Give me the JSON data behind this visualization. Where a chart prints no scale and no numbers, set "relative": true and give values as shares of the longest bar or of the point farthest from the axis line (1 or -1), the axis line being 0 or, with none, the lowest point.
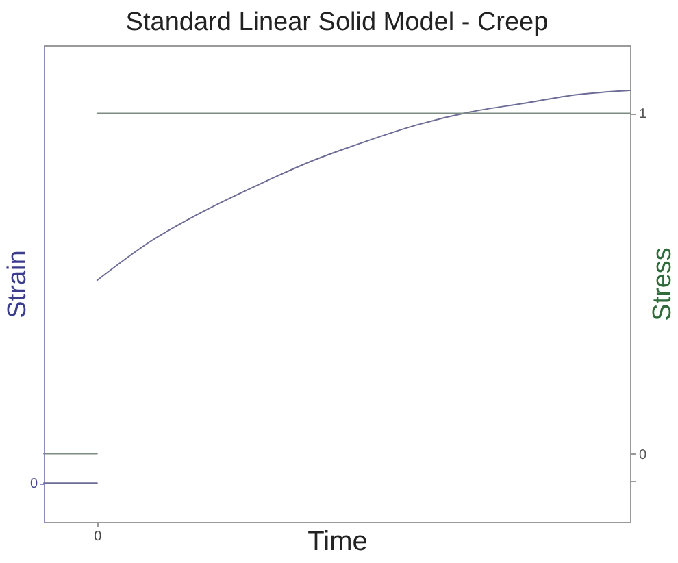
{
  "chart_data": {
    "type": "line",
    "title": "Standard Linear Solid Model - Creep",
    "xlabel": "Time",
    "ylabel": "Strain",
    "y2label": "Stress",
    "relative": true,
    "categories": [
      null,
      "0",
      null,
      null,
      null,
      null,
      null,
      null,
      null,
      null,
      null,
      null
    ],
    "y2lim": [
      -0.2,
      1.2
    ],
    "y2ticks": [
      0,
      1,
      {
        "value": -0.08,
        "label": null
      }
    ],
    "annotations": [
      "0"
    ],
    "series": [
      {
        "color": "#6c6c96",
        "values": [
          0.09,
          0.09,
          null,
          null,
          null,
          null,
          null,
          null,
          null,
          null,
          null,
          null
        ]
      },
      {
        "color": "#6c6c96",
        "values": [
          null,
          0.56,
          0.65,
          0.72,
          0.78,
          0.835,
          0.88,
          0.92,
          0.95,
          0.97,
          0.99,
          1
        ]
      },
      {
        "axis": "y2",
        "color": "#7d8c82",
        "values": [
          0,
          0,
          null,
          null,
          null,
          null,
          null,
          null,
          null,
          null,
          null,
          null
        ]
      },
      {
        "axis": "y2",
        "color": "#7d8c82",
        "values": [
          null,
          1,
          1,
          1,
          1,
          1,
          1,
          1,
          1,
          1,
          1,
          1
        ]
      }
    ]
  }
}
